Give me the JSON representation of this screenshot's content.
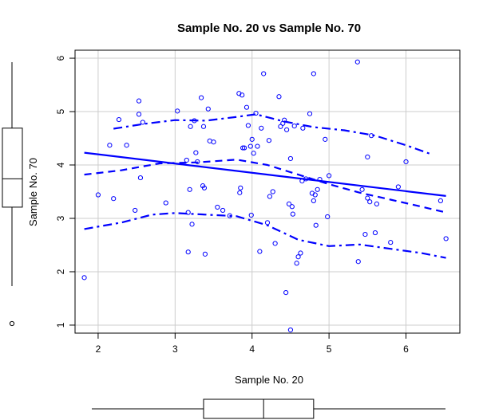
{
  "chart_data": {
    "type": "scatter",
    "title": "Sample No. 20 vs Sample No. 70",
    "xlabel": "Sample No. 20",
    "ylabel": "Sample No. 70",
    "xlim": [
      1.7,
      6.7
    ],
    "ylim": [
      0.85,
      6.15
    ],
    "xticks": [
      2,
      3,
      4,
      5,
      6
    ],
    "yticks": [
      1,
      2,
      3,
      4,
      5,
      6
    ],
    "grid": true,
    "colors": {
      "points": "#0000ff",
      "lines": "#0000ff",
      "grid": "#cccccc",
      "frame": "#000000"
    },
    "points": [
      [
        1.82,
        1.89
      ],
      [
        2.0,
        3.44
      ],
      [
        2.15,
        4.37
      ],
      [
        2.2,
        3.37
      ],
      [
        2.27,
        4.85
      ],
      [
        2.37,
        4.37
      ],
      [
        2.48,
        3.15
      ],
      [
        2.53,
        5.2
      ],
      [
        2.53,
        4.95
      ],
      [
        2.55,
        3.76
      ],
      [
        2.58,
        4.8
      ],
      [
        2.88,
        3.29
      ],
      [
        3.03,
        5.01
      ],
      [
        3.15,
        4.09
      ],
      [
        3.17,
        2.37
      ],
      [
        3.17,
        3.11
      ],
      [
        3.19,
        3.54
      ],
      [
        3.2,
        4.72
      ],
      [
        3.22,
        2.89
      ],
      [
        3.25,
        4.83
      ],
      [
        3.27,
        4.23
      ],
      [
        3.29,
        4.06
      ],
      [
        3.34,
        5.26
      ],
      [
        3.36,
        3.61
      ],
      [
        3.37,
        4.72
      ],
      [
        3.38,
        3.57
      ],
      [
        3.39,
        2.33
      ],
      [
        3.43,
        5.05
      ],
      [
        3.45,
        4.45
      ],
      [
        3.5,
        4.43
      ],
      [
        3.55,
        3.21
      ],
      [
        3.62,
        3.15
      ],
      [
        3.71,
        3.05
      ],
      [
        3.83,
        5.34
      ],
      [
        3.84,
        3.48
      ],
      [
        3.85,
        3.57
      ],
      [
        3.87,
        5.31
      ],
      [
        3.88,
        4.32
      ],
      [
        3.9,
        4.32
      ],
      [
        3.93,
        5.08
      ],
      [
        3.95,
        4.74
      ],
      [
        3.98,
        4.35
      ],
      [
        3.99,
        3.06
      ],
      [
        4.0,
        4.48
      ],
      [
        4.02,
        4.22
      ],
      [
        4.05,
        4.97
      ],
      [
        4.07,
        4.35
      ],
      [
        4.1,
        2.38
      ],
      [
        4.12,
        4.69
      ],
      [
        4.15,
        5.71
      ],
      [
        4.2,
        2.92
      ],
      [
        4.22,
        4.46
      ],
      [
        4.23,
        3.41
      ],
      [
        4.27,
        3.5
      ],
      [
        4.3,
        2.53
      ],
      [
        4.35,
        5.28
      ],
      [
        4.37,
        4.72
      ],
      [
        4.4,
        4.78
      ],
      [
        4.42,
        4.84
      ],
      [
        4.44,
        1.61
      ],
      [
        4.45,
        4.66
      ],
      [
        4.48,
        3.27
      ],
      [
        4.5,
        0.91
      ],
      [
        4.5,
        4.12
      ],
      [
        4.52,
        3.22
      ],
      [
        4.53,
        3.08
      ],
      [
        4.55,
        4.73
      ],
      [
        4.58,
        2.16
      ],
      [
        4.6,
        2.28
      ],
      [
        4.63,
        2.35
      ],
      [
        4.65,
        3.7
      ],
      [
        4.66,
        4.69
      ],
      [
        4.7,
        3.74
      ],
      [
        4.75,
        4.96
      ],
      [
        4.78,
        3.47
      ],
      [
        4.8,
        5.71
      ],
      [
        4.8,
        3.33
      ],
      [
        4.82,
        3.44
      ],
      [
        4.83,
        2.87
      ],
      [
        4.85,
        3.54
      ],
      [
        4.88,
        3.73
      ],
      [
        4.95,
        4.48
      ],
      [
        4.98,
        3.03
      ],
      [
        5.0,
        3.8
      ],
      [
        5.37,
        5.93
      ],
      [
        5.38,
        2.19
      ],
      [
        5.43,
        3.54
      ],
      [
        5.47,
        2.7
      ],
      [
        5.5,
        4.15
      ],
      [
        5.5,
        3.38
      ],
      [
        5.53,
        3.31
      ],
      [
        5.55,
        4.55
      ],
      [
        5.6,
        2.73
      ],
      [
        5.62,
        3.27
      ],
      [
        5.8,
        2.55
      ],
      [
        5.9,
        3.59
      ],
      [
        6.0,
        4.06
      ],
      [
        6.45,
        3.33
      ],
      [
        6.52,
        2.62
      ]
    ],
    "regression_line": [
      [
        1.82,
        4.23
      ],
      [
        6.52,
        3.42
      ]
    ],
    "smooth_center": [
      [
        1.82,
        3.82
      ],
      [
        2.3,
        3.9
      ],
      [
        2.8,
        4.03
      ],
      [
        3.3,
        4.05
      ],
      [
        3.8,
        4.1
      ],
      [
        4.2,
        4.0
      ],
      [
        4.6,
        3.82
      ],
      [
        5.0,
        3.64
      ],
      [
        5.4,
        3.48
      ],
      [
        5.8,
        3.35
      ],
      [
        6.2,
        3.22
      ],
      [
        6.52,
        3.11
      ]
    ],
    "smooth_upper": [
      [
        2.2,
        4.68
      ],
      [
        2.6,
        4.77
      ],
      [
        3.0,
        4.84
      ],
      [
        3.4,
        4.83
      ],
      [
        3.8,
        4.9
      ],
      [
        4.05,
        4.95
      ],
      [
        4.4,
        4.82
      ],
      [
        4.8,
        4.71
      ],
      [
        5.2,
        4.65
      ],
      [
        5.6,
        4.55
      ],
      [
        6.0,
        4.37
      ],
      [
        6.35,
        4.19
      ]
    ],
    "smooth_lower": [
      [
        1.82,
        2.8
      ],
      [
        2.3,
        2.92
      ],
      [
        2.7,
        3.07
      ],
      [
        3.0,
        3.1
      ],
      [
        3.4,
        3.07
      ],
      [
        3.8,
        3.04
      ],
      [
        4.2,
        2.87
      ],
      [
        4.6,
        2.6
      ],
      [
        5.0,
        2.48
      ],
      [
        5.4,
        2.51
      ],
      [
        5.8,
        2.43
      ],
      [
        6.2,
        2.35
      ],
      [
        6.52,
        2.26
      ]
    ],
    "x_boxplot": {
      "min": 1.82,
      "q1": 3.37,
      "median": 4.15,
      "q3": 4.8,
      "max": 6.52
    },
    "y_boxplot": {
      "min": 1.61,
      "q1": 3.21,
      "median": 3.74,
      "q3": 4.69,
      "max": 5.93,
      "outliers": [
        0.91
      ]
    }
  }
}
